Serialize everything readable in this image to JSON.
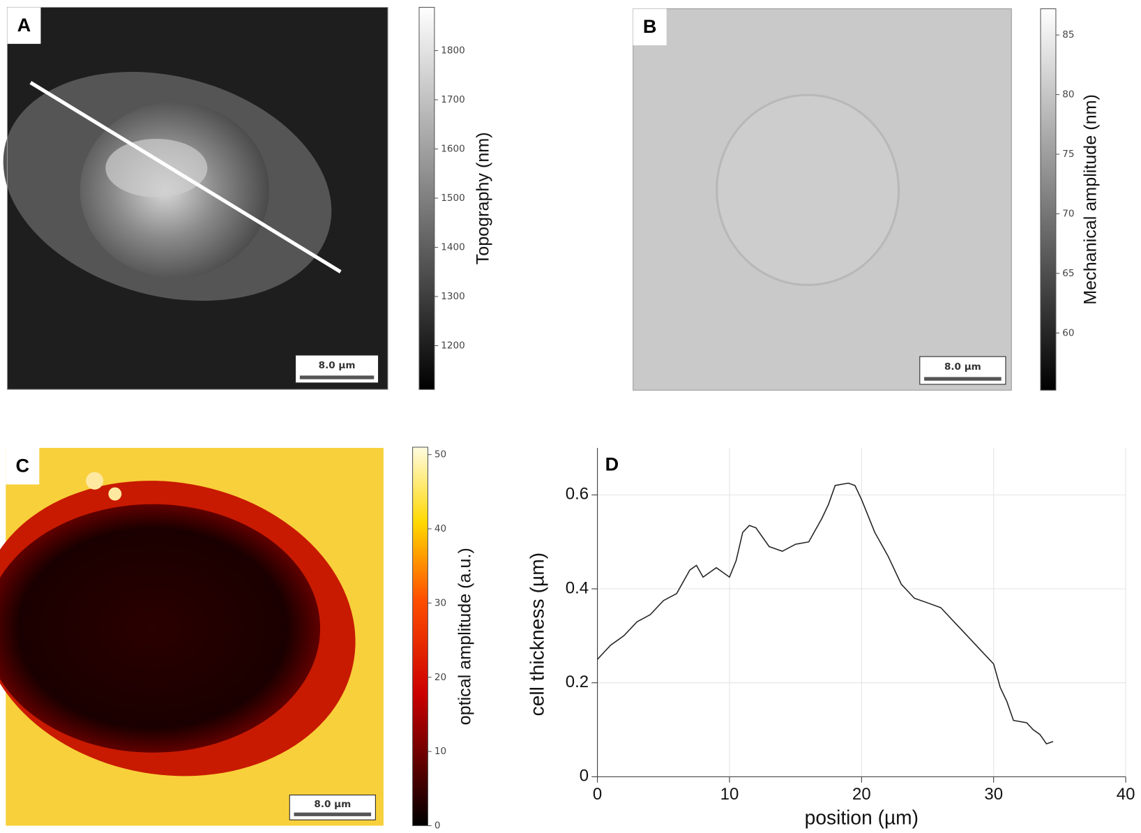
{
  "panels": [
    {
      "label": "A",
      "colorbar": {
        "label": "Topography (nm)",
        "clim": [
          1111,
          1888
        ],
        "ticks": [
          1200,
          1300,
          1400,
          1500,
          1600,
          1700,
          1800
        ]
      },
      "scalebar": "8.0 µm"
    },
    {
      "label": "B",
      "colorbar": {
        "label": "Mechanical amplitude (nm)",
        "clim": [
          55.2,
          87.2
        ],
        "ticks": [
          60,
          65,
          70,
          75,
          80,
          85
        ]
      },
      "scalebar": "8.0 µm"
    },
    {
      "label": "C",
      "colorbar": {
        "label": "optical amplitude (a.u.)",
        "clim": [
          0,
          51
        ],
        "ticks": [
          0,
          10,
          20,
          30,
          40,
          50
        ]
      },
      "scalebar": "8.0 µm"
    }
  ],
  "chart_data": {
    "type": "line",
    "panel_label": "D",
    "xlabel": "position (µm)",
    "ylabel": "cell thickness (µm)",
    "xlim": [
      0,
      40
    ],
    "ylim": [
      0,
      0.7
    ],
    "xticks": [
      0,
      10,
      20,
      30,
      40
    ],
    "yticks": [
      0,
      0.2,
      0.4,
      0.6
    ],
    "grid": true,
    "color": "#222",
    "x": [
      0,
      0.5,
      1,
      2,
      3,
      4,
      5,
      6,
      7,
      7.5,
      8,
      9,
      10,
      10.5,
      11,
      11.5,
      12,
      13,
      14,
      15,
      16,
      17,
      17.5,
      18,
      19,
      19.5,
      20,
      21,
      22,
      23,
      24,
      25,
      26,
      27,
      28,
      29,
      30,
      30.5,
      31,
      31.5,
      32.5,
      33,
      33.5,
      34,
      34.5
    ],
    "values": [
      0.25,
      0.265,
      0.28,
      0.3,
      0.33,
      0.345,
      0.375,
      0.39,
      0.44,
      0.45,
      0.425,
      0.445,
      0.425,
      0.46,
      0.52,
      0.535,
      0.53,
      0.49,
      0.48,
      0.495,
      0.5,
      0.55,
      0.58,
      0.62,
      0.625,
      0.62,
      0.59,
      0.52,
      0.47,
      0.41,
      0.38,
      0.37,
      0.36,
      0.33,
      0.3,
      0.27,
      0.24,
      0.19,
      0.16,
      0.12,
      0.115,
      0.1,
      0.09,
      0.07,
      0.075
    ]
  }
}
